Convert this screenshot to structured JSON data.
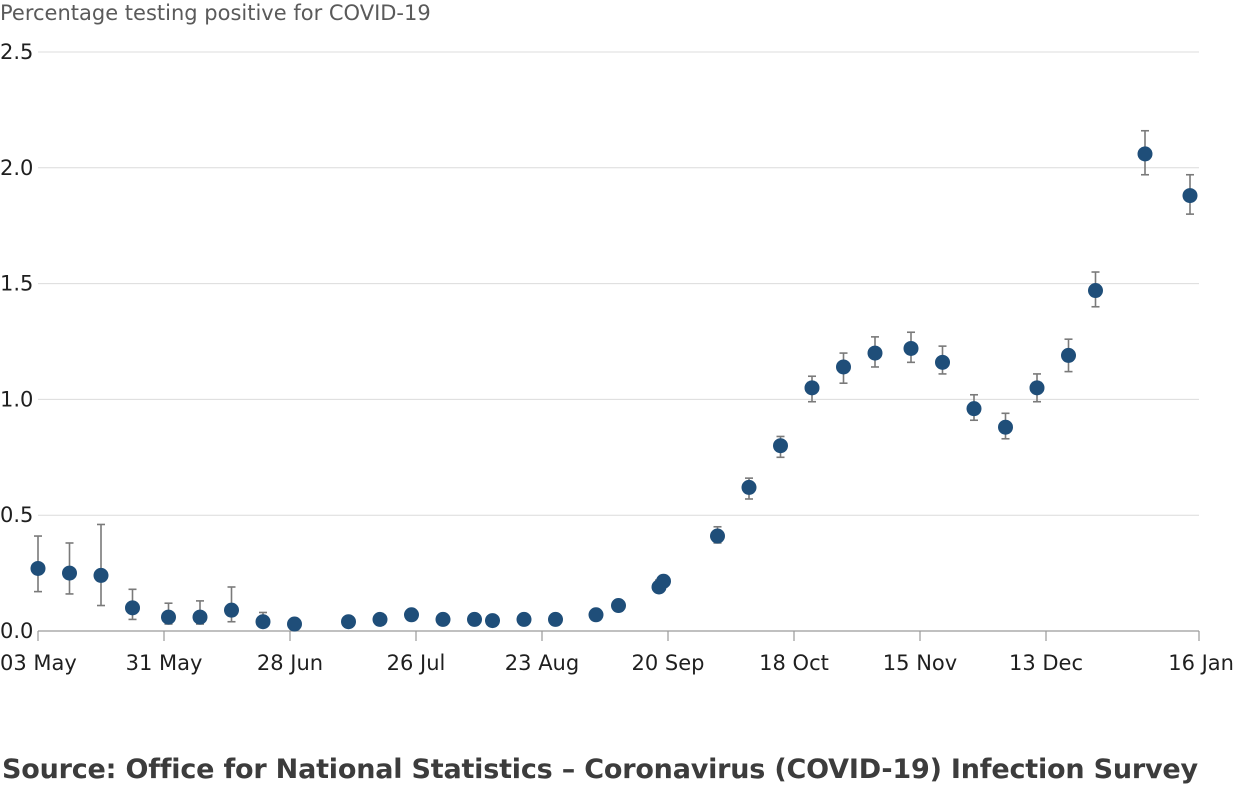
{
  "chart_data": {
    "type": "scatter",
    "ylabel": "Percentage testing positive for COVID-19",
    "ylim": [
      0,
      2.5
    ],
    "y_ticks": [
      "0.0",
      "0.5",
      "1.0",
      "1.5",
      "2.0",
      "2.5"
    ],
    "y_tick_values": [
      0,
      0.5,
      1.0,
      1.5,
      2.0,
      2.5
    ],
    "x_axis": "date",
    "x_range": [
      "2020-05-03",
      "2021-01-16"
    ],
    "x_ticks": [
      {
        "label": "03 May",
        "date": "2020-05-03"
      },
      {
        "label": "31 May",
        "date": "2020-05-31"
      },
      {
        "label": "28 Jun",
        "date": "2020-06-28"
      },
      {
        "label": "26 Jul",
        "date": "2020-07-26"
      },
      {
        "label": "23 Aug",
        "date": "2020-08-23"
      },
      {
        "label": "20 Sep",
        "date": "2020-09-20"
      },
      {
        "label": "18 Oct",
        "date": "2020-10-18"
      },
      {
        "label": "15 Nov",
        "date": "2020-11-15"
      },
      {
        "label": "13 Dec",
        "date": "2020-12-13"
      },
      {
        "label": "16 Jan",
        "date": "2021-01-16"
      }
    ],
    "grid": true,
    "point_color": "#1f4e79",
    "error_bar_color": "#7a7a7a",
    "points": [
      {
        "date": "2020-05-03",
        "value": 0.27,
        "low": 0.17,
        "high": 0.41
      },
      {
        "date": "2020-05-10",
        "value": 0.25,
        "low": 0.16,
        "high": 0.38
      },
      {
        "date": "2020-05-17",
        "value": 0.24,
        "low": 0.11,
        "high": 0.46
      },
      {
        "date": "2020-05-24",
        "value": 0.1,
        "low": 0.05,
        "high": 0.18
      },
      {
        "date": "2020-06-01",
        "value": 0.06,
        "low": 0.03,
        "high": 0.12
      },
      {
        "date": "2020-06-08",
        "value": 0.06,
        "low": 0.03,
        "high": 0.13
      },
      {
        "date": "2020-06-15",
        "value": 0.09,
        "low": 0.04,
        "high": 0.19
      },
      {
        "date": "2020-06-22",
        "value": 0.04,
        "low": 0.02,
        "high": 0.08
      },
      {
        "date": "2020-06-29",
        "value": 0.03,
        "low": 0.02,
        "high": 0.05
      },
      {
        "date": "2020-07-11",
        "value": 0.04,
        "low": 0.03,
        "high": 0.06
      },
      {
        "date": "2020-07-18",
        "value": 0.05,
        "low": 0.04,
        "high": 0.07
      },
      {
        "date": "2020-07-25",
        "value": 0.07,
        "low": 0.05,
        "high": 0.09
      },
      {
        "date": "2020-08-01",
        "value": 0.05,
        "low": 0.04,
        "high": 0.07
      },
      {
        "date": "2020-08-08",
        "value": 0.05,
        "low": 0.04,
        "high": 0.07
      },
      {
        "date": "2020-08-12",
        "value": 0.045,
        "low": 0.035,
        "high": 0.06
      },
      {
        "date": "2020-08-19",
        "value": 0.05,
        "low": 0.04,
        "high": 0.07
      },
      {
        "date": "2020-08-26",
        "value": 0.05,
        "low": 0.04,
        "high": 0.07
      },
      {
        "date": "2020-09-04",
        "value": 0.07,
        "low": 0.06,
        "high": 0.09
      },
      {
        "date": "2020-09-09",
        "value": 0.11,
        "low": 0.09,
        "high": 0.13
      },
      {
        "date": "2020-09-18",
        "value": 0.19,
        "low": 0.17,
        "high": 0.22
      },
      {
        "date": "2020-09-19",
        "value": 0.215,
        "low": 0.19,
        "high": 0.24
      },
      {
        "date": "2020-10-01",
        "value": 0.41,
        "low": 0.38,
        "high": 0.45
      },
      {
        "date": "2020-10-08",
        "value": 0.62,
        "low": 0.57,
        "high": 0.66
      },
      {
        "date": "2020-10-15",
        "value": 0.8,
        "low": 0.75,
        "high": 0.84
      },
      {
        "date": "2020-10-22",
        "value": 1.05,
        "low": 0.99,
        "high": 1.1
      },
      {
        "date": "2020-10-29",
        "value": 1.14,
        "low": 1.07,
        "high": 1.2
      },
      {
        "date": "2020-11-05",
        "value": 1.2,
        "low": 1.14,
        "high": 1.27
      },
      {
        "date": "2020-11-13",
        "value": 1.22,
        "low": 1.16,
        "high": 1.29
      },
      {
        "date": "2020-11-20",
        "value": 1.16,
        "low": 1.11,
        "high": 1.23
      },
      {
        "date": "2020-11-27",
        "value": 0.96,
        "low": 0.91,
        "high": 1.02
      },
      {
        "date": "2020-12-04",
        "value": 0.88,
        "low": 0.83,
        "high": 0.94
      },
      {
        "date": "2020-12-11",
        "value": 1.05,
        "low": 0.99,
        "high": 1.11
      },
      {
        "date": "2020-12-18",
        "value": 1.19,
        "low": 1.12,
        "high": 1.26
      },
      {
        "date": "2020-12-24",
        "value": 1.47,
        "low": 1.4,
        "high": 1.55
      },
      {
        "date": "2021-01-04",
        "value": 2.06,
        "low": 1.97,
        "high": 2.16
      },
      {
        "date": "2021-01-14",
        "value": 1.88,
        "low": 1.8,
        "high": 1.97
      }
    ]
  },
  "footer": {
    "source": "Source: Office for National Statistics – Coronavirus (COVID-19) Infection Survey"
  }
}
